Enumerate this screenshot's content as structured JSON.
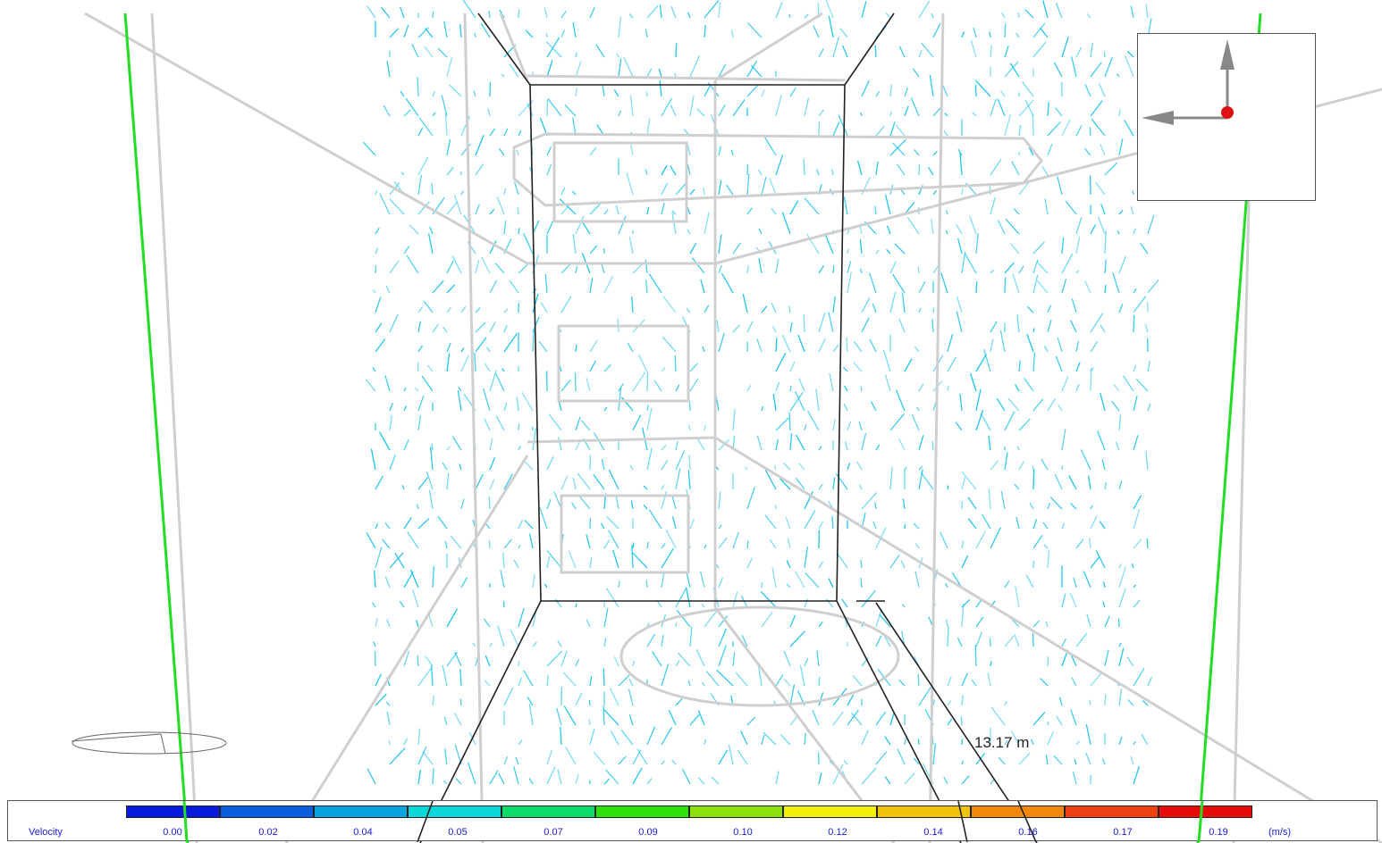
{
  "viewer": {
    "dimension_label": "13.17 m"
  },
  "legend": {
    "title": "Velocity",
    "unit": "(m/s)",
    "ticks": [
      "0.00",
      "0.02",
      "0.04",
      "0.05",
      "0.07",
      "0.09",
      "0.10",
      "0.12",
      "0.14",
      "0.16",
      "0.17",
      "0.19"
    ],
    "colors": [
      "#0a1adc",
      "#0a60dc",
      "#0aa4dc",
      "#0ad8d8",
      "#0adc6a",
      "#2ee00a",
      "#8ee00a",
      "#f0f00a",
      "#f0c40a",
      "#f0880a",
      "#ee4010",
      "#e80a0a"
    ]
  },
  "colors": {
    "vector": "#19c3ef",
    "room_edge": "#222222",
    "ghost_line": "#cccccc",
    "green_line": "#22dd22",
    "axis_arrow": "#888888",
    "axis_origin": "#dd1111"
  }
}
